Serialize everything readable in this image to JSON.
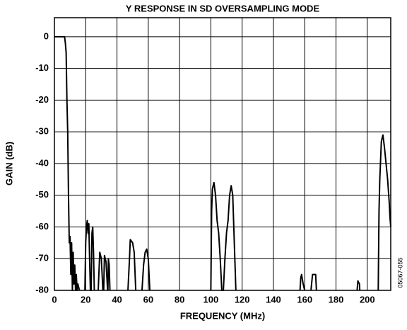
{
  "chart_data": {
    "type": "line",
    "title": "Y RESPONSE IN SD OVERSAMPLING MODE",
    "x_label": "FREQUENCY (MHz)",
    "y_label": "GAIN (dB)",
    "annotation": "05067-055",
    "xlim": [
      0,
      215
    ],
    "ylim": [
      -80,
      6
    ],
    "xticks": [
      0,
      20,
      40,
      60,
      80,
      100,
      120,
      140,
      160,
      180,
      200
    ],
    "yticks": [
      0,
      -10,
      -20,
      -30,
      -40,
      -50,
      -60,
      -70,
      -80
    ],
    "grid": true,
    "series": [
      {
        "color": "#000000",
        "x": [
          0,
          6.5,
          7,
          7.5,
          8,
          8.5,
          9,
          9.5,
          10,
          10.5,
          11,
          11.5,
          12,
          12.5,
          13,
          13.5,
          14,
          14.5,
          15,
          16,
          null,
          19.5,
          20,
          20.5,
          21,
          21.5,
          22,
          22.5,
          23,
          23.5,
          24,
          24.5,
          25,
          25.5,
          null,
          28,
          29,
          30,
          31,
          null,
          31.5,
          32,
          33,
          34,
          null,
          34.2,
          34.5,
          35,
          35.5,
          null,
          47,
          48,
          48.5,
          50,
          51,
          52,
          null,
          56,
          57,
          58,
          59,
          60,
          61,
          null,
          100,
          100.5,
          101,
          102,
          103,
          104,
          105,
          106,
          107,
          108,
          109,
          110,
          111,
          112,
          113,
          114,
          115,
          116,
          null,
          157,
          157.5,
          158,
          159,
          160,
          null,
          164,
          165,
          167,
          167.5,
          null,
          193.5,
          194,
          195,
          195.2,
          null,
          207,
          207.5,
          208,
          209,
          210,
          211,
          212,
          213,
          214,
          214.5,
          215
        ],
        "values": [
          0,
          0,
          -2,
          -5,
          -20,
          -30,
          -50,
          -65,
          -63,
          -75,
          -65,
          -80,
          -68,
          -78,
          -72,
          -80,
          -75,
          -80,
          -78,
          -80,
          null,
          -80,
          -65,
          -60,
          -58,
          -62,
          -59,
          -70,
          -80,
          -80,
          -62,
          -60,
          -68,
          -80,
          null,
          -80,
          -68,
          -70,
          -80,
          null,
          -80,
          -69,
          -71,
          -80,
          null,
          -80,
          -70,
          -72,
          -80,
          null,
          -80,
          -70,
          -64,
          -65,
          -68,
          -80,
          null,
          -80,
          -72,
          -68,
          -67,
          -70,
          -80,
          null,
          -80,
          -55,
          -48,
          -46,
          -50,
          -58,
          -62,
          -70,
          -80,
          -80,
          -70,
          -62,
          -58,
          -50,
          -47,
          -50,
          -65,
          -80,
          null,
          -80,
          -76,
          -75,
          -78,
          -80,
          null,
          -80,
          -75,
          -75,
          -80,
          null,
          -80,
          -77,
          -78,
          -80,
          null,
          -80,
          -55,
          -45,
          -33,
          -31,
          -35,
          -40,
          -45,
          -52,
          -57,
          -60
        ]
      }
    ]
  }
}
